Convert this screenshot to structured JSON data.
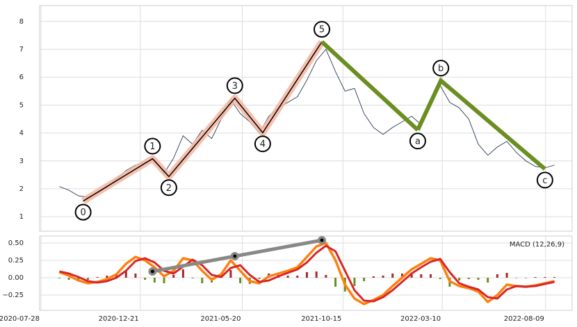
{
  "chart_data": [
    {
      "type": "line",
      "x": [
        "2020-08-24",
        "2020-09-07",
        "2020-09-21",
        "2020-10-05",
        "2020-10-19",
        "2020-11-02",
        "2020-11-16",
        "2020-11-30",
        "2020-12-14",
        "2020-12-28",
        "2021-01-11",
        "2021-01-25",
        "2021-02-08",
        "2021-02-22",
        "2021-03-08",
        "2021-03-22",
        "2021-04-05",
        "2021-04-19",
        "2021-05-03",
        "2021-05-17",
        "2021-05-31",
        "2021-06-14",
        "2021-06-28",
        "2021-07-12",
        "2021-07-26",
        "2021-08-09",
        "2021-08-23",
        "2021-09-06",
        "2021-09-20",
        "2021-10-04",
        "2021-10-18",
        "2021-11-01",
        "2021-11-15",
        "2021-11-29",
        "2021-12-13",
        "2021-12-27",
        "2022-01-10",
        "2022-01-24",
        "2022-02-07",
        "2022-02-21",
        "2022-03-07",
        "2022-03-21",
        "2022-04-04",
        "2022-04-18",
        "2022-05-02",
        "2022-05-16",
        "2022-05-30",
        "2022-06-13",
        "2022-06-27",
        "2022-07-11",
        "2022-07-25",
        "2022-08-08",
        "2022-08-22"
      ],
      "series": [
        {
          "color": "#3b4a63",
          "values": [
            2.08,
            1.95,
            1.75,
            1.7,
            1.85,
            2.05,
            2.35,
            2.65,
            2.85,
            2.95,
            3.05,
            2.55,
            3.1,
            3.9,
            3.6,
            4.1,
            3.8,
            4.5,
            5.2,
            4.7,
            4.4,
            4.0,
            4.6,
            4.9,
            5.1,
            5.3,
            5.9,
            6.6,
            7.0,
            6.2,
            5.5,
            5.6,
            4.7,
            4.2,
            3.95,
            4.2,
            4.4,
            4.6,
            4.3,
            5.0,
            5.7,
            5.1,
            4.9,
            4.5,
            3.6,
            3.2,
            3.5,
            3.7,
            3.3,
            3.0,
            2.8,
            2.75,
            2.85
          ]
        }
      ],
      "waves": [
        {
          "color": "#000000",
          "band_color": "#f4b6a0",
          "x": [
            "2020-09-28",
            "2021-01-08",
            "2021-02-01",
            "2021-05-09",
            "2021-06-19",
            "2021-09-14"
          ],
          "values": [
            1.56,
            3.08,
            2.44,
            5.25,
            4.01,
            7.27
          ],
          "labels": [
            "0",
            "1",
            "2",
            "3",
            "4",
            "5"
          ]
        },
        {
          "color": "#6b8e23",
          "x": [
            "2022-02-02",
            "2022-03-08",
            "2022-08-08"
          ],
          "values": [
            4.11,
            5.88,
            2.71
          ],
          "labels": [
            "a",
            "b",
            "c"
          ]
        }
      ],
      "xlim": [
        "2020-07-26",
        "2022-09-17"
      ],
      "xticks": [
        "2020-07-28",
        "2020-12-21",
        "2021-05-20",
        "2021-10-15",
        "2022-03-10",
        "2022-08-09"
      ],
      "ylim": [
        0.48,
        8.57
      ],
      "yticks": [
        1,
        2,
        3,
        4,
        5,
        6,
        7,
        8
      ],
      "grid": true
    },
    {
      "type": "macd",
      "label": "MACD (12,26,9)",
      "x": [
        "2020-08-24",
        "2020-09-07",
        "2020-09-21",
        "2020-10-05",
        "2020-10-19",
        "2020-11-02",
        "2020-11-16",
        "2020-11-30",
        "2020-12-14",
        "2020-12-28",
        "2021-01-11",
        "2021-01-25",
        "2021-02-08",
        "2021-02-22",
        "2021-03-08",
        "2021-03-22",
        "2021-04-05",
        "2021-04-19",
        "2021-05-03",
        "2021-05-17",
        "2021-05-31",
        "2021-06-14",
        "2021-06-28",
        "2021-07-12",
        "2021-07-26",
        "2021-08-09",
        "2021-08-23",
        "2021-09-06",
        "2021-09-20",
        "2021-10-04",
        "2021-10-18",
        "2021-11-01",
        "2021-11-15",
        "2021-11-29",
        "2021-12-13",
        "2021-12-27",
        "2022-01-10",
        "2022-01-24",
        "2022-02-07",
        "2022-02-21",
        "2022-03-07",
        "2022-03-21",
        "2022-04-04",
        "2022-04-18",
        "2022-05-02",
        "2022-05-16",
        "2022-05-30",
        "2022-06-13",
        "2022-06-27",
        "2022-07-11",
        "2022-07-25",
        "2022-08-08",
        "2022-08-22"
      ],
      "macd": {
        "color": "#ff7f0e",
        "values": [
          0.08,
          0.03,
          -0.04,
          -0.08,
          -0.06,
          -0.02,
          0.05,
          0.2,
          0.3,
          0.25,
          0.15,
          0.02,
          0.1,
          0.28,
          0.25,
          0.1,
          -0.03,
          0.05,
          0.25,
          0.1,
          -0.05,
          -0.08,
          0.02,
          0.06,
          0.1,
          0.15,
          0.3,
          0.45,
          0.5,
          0.25,
          -0.1,
          -0.3,
          -0.38,
          -0.32,
          -0.25,
          -0.12,
          0.0,
          0.12,
          0.2,
          0.28,
          0.25,
          -0.05,
          -0.12,
          -0.15,
          -0.2,
          -0.35,
          -0.25,
          -0.1,
          -0.12,
          -0.13,
          -0.11,
          -0.08,
          -0.05
        ]
      },
      "signal": {
        "color": "#d62728",
        "values": [
          0.09,
          0.06,
          0.01,
          -0.05,
          -0.07,
          -0.05,
          0.0,
          0.1,
          0.24,
          0.28,
          0.22,
          0.1,
          0.06,
          0.16,
          0.26,
          0.18,
          0.04,
          0.01,
          0.14,
          0.18,
          0.04,
          -0.06,
          -0.04,
          0.02,
          0.07,
          0.12,
          0.22,
          0.36,
          0.46,
          0.38,
          0.1,
          -0.18,
          -0.33,
          -0.34,
          -0.28,
          -0.18,
          -0.06,
          0.06,
          0.15,
          0.23,
          0.27,
          0.08,
          -0.08,
          -0.13,
          -0.17,
          -0.28,
          -0.3,
          -0.17,
          -0.12,
          -0.13,
          -0.12,
          -0.09,
          -0.06
        ]
      },
      "hist": {
        "colors": [
          "#a52a2a",
          "#6b8e23"
        ],
        "values": [
          -0.01,
          -0.03,
          -0.05,
          -0.03,
          0.01,
          0.03,
          0.05,
          0.1,
          0.06,
          -0.03,
          -0.07,
          -0.08,
          0.04,
          0.12,
          -0.01,
          -0.08,
          -0.07,
          0.04,
          0.11,
          -0.08,
          -0.09,
          -0.02,
          0.06,
          0.04,
          0.03,
          0.03,
          0.08,
          0.09,
          0.04,
          -0.13,
          -0.2,
          -0.12,
          -0.05,
          0.02,
          0.03,
          0.06,
          0.06,
          0.06,
          0.05,
          0.05,
          -0.02,
          -0.13,
          -0.04,
          -0.02,
          -0.03,
          -0.07,
          0.05,
          0.07,
          0.0,
          0.0,
          0.01,
          0.01,
          0.01
        ]
      },
      "divergence": {
        "color": "#888888",
        "x": [
          "2021-01-08",
          "2021-05-09",
          "2021-09-14"
        ],
        "values": [
          0.09,
          0.31,
          0.54
        ]
      },
      "xlim": [
        "2020-07-26",
        "2022-09-17"
      ],
      "xticks": [
        "2020-07-28",
        "2020-12-21",
        "2021-05-20",
        "2021-10-15",
        "2022-03-10",
        "2022-08-09"
      ],
      "ylim": [
        -0.47,
        0.6
      ],
      "yticks": [
        {
          "value": 0.5,
          "label": "0.50"
        },
        {
          "value": 0.25,
          "label": "0.25"
        },
        {
          "value": 0,
          "label": "0.00"
        },
        {
          "value": -0.25,
          "label": "−0.25"
        }
      ],
      "grid": true
    }
  ]
}
